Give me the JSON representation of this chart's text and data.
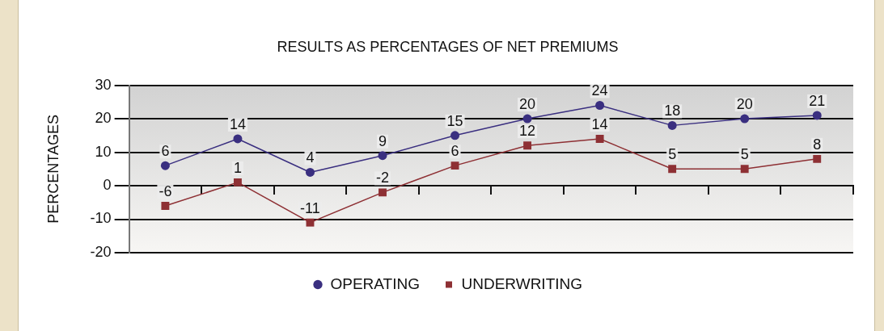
{
  "chart_data": {
    "type": "line",
    "title": "RESULTS AS PERCENTAGES OF NET PREMIUMS",
    "ylabel": "PERCENTAGES",
    "categories": [
      null,
      null,
      null,
      null,
      null,
      null,
      null,
      null,
      null,
      null
    ],
    "series": [
      {
        "name": "OPERATING",
        "color": "#3a2f80",
        "marker": "circle",
        "values": [
          6,
          14,
          4,
          9,
          15,
          20,
          24,
          18,
          20,
          21
        ]
      },
      {
        "name": "UNDERWRITING",
        "color": "#8e3034",
        "marker": "square",
        "values": [
          -6,
          1,
          -11,
          -2,
          6,
          12,
          14,
          5,
          5,
          8
        ]
      }
    ],
    "ylim": [
      -20,
      30
    ],
    "yticks": [
      -20,
      -10,
      0,
      10,
      20,
      30
    ],
    "grid": "y",
    "legend": "bottom",
    "data_labels": true,
    "line_style": "solid"
  }
}
